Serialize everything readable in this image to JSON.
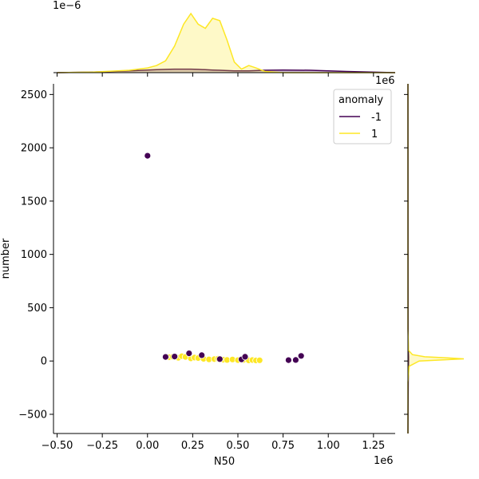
{
  "chart_data": {
    "type": "scatter",
    "xlabel": "N50",
    "ylabel": "number",
    "x_ticks": [
      "−0.50",
      "−0.25",
      "0.00",
      "0.25",
      "0.50",
      "0.75",
      "1.00",
      "1.25"
    ],
    "y_ticks": [
      "−500",
      "0",
      "500",
      "1000",
      "1500",
      "2000",
      "2500"
    ],
    "x_ticks_values": [
      -0.5,
      -0.25,
      0,
      0.25,
      0.5,
      0.75,
      1.0,
      1.25
    ],
    "y_ticks_values": [
      -500,
      0,
      500,
      1000,
      1500,
      2000,
      2500
    ],
    "x_offset_label": "1e6",
    "right_offset_label": "1e6",
    "top_offset_label": "1e−6",
    "xlim": [
      -0.52,
      1.37
    ],
    "ylim": [
      -680,
      2600
    ],
    "grid": false,
    "legend": {
      "title": "anomaly",
      "placement": "top-right",
      "entries": [
        {
          "label": "-1",
          "color": "#440154"
        },
        {
          "label": "1",
          "color": "#fde725"
        }
      ]
    },
    "colors": {
      "anomaly_neg": "#440154",
      "anomaly_pos": "#fde725"
    },
    "series": [
      {
        "anomaly": "-1",
        "color": "#440154",
        "points": [
          [
            0.0,
            1925
          ],
          [
            0.1,
            38
          ],
          [
            0.15,
            42
          ],
          [
            0.23,
            72
          ],
          [
            0.3,
            55
          ],
          [
            0.4,
            18
          ],
          [
            0.52,
            15
          ],
          [
            0.54,
            40
          ],
          [
            0.78,
            8
          ],
          [
            0.82,
            10
          ],
          [
            0.85,
            48
          ]
        ]
      },
      {
        "anomaly": "1",
        "color": "#fde725",
        "points": [
          [
            0.12,
            35
          ],
          [
            0.14,
            40
          ],
          [
            0.17,
            30
          ],
          [
            0.19,
            45
          ],
          [
            0.21,
            38
          ],
          [
            0.24,
            25
          ],
          [
            0.26,
            32
          ],
          [
            0.28,
            28
          ],
          [
            0.31,
            20
          ],
          [
            0.34,
            15
          ],
          [
            0.37,
            18
          ],
          [
            0.39,
            22
          ],
          [
            0.42,
            12
          ],
          [
            0.44,
            10
          ],
          [
            0.47,
            14
          ],
          [
            0.5,
            8
          ],
          [
            0.53,
            10
          ],
          [
            0.56,
            6
          ],
          [
            0.58,
            9
          ],
          [
            0.6,
            5
          ],
          [
            0.62,
            7
          ]
        ]
      }
    ],
    "top_density": {
      "unit_label": "1e−6",
      "x": [
        -0.5,
        -0.3,
        -0.1,
        0.0,
        0.05,
        0.1,
        0.15,
        0.2,
        0.24,
        0.28,
        0.32,
        0.36,
        0.4,
        0.44,
        0.48,
        0.52,
        0.56,
        0.6,
        0.65,
        0.75,
        0.9,
        1.1,
        1.37
      ],
      "pos": [
        0.0,
        0.01,
        0.04,
        0.08,
        0.12,
        0.2,
        0.45,
        0.82,
        1.0,
        0.82,
        0.75,
        0.92,
        0.88,
        0.55,
        0.18,
        0.06,
        0.12,
        0.08,
        0.02,
        0.0,
        0.0,
        0.0,
        0.0
      ],
      "neg": [
        0.0,
        0.01,
        0.03,
        0.045,
        0.05,
        0.055,
        0.06,
        0.06,
        0.06,
        0.055,
        0.05,
        0.045,
        0.04,
        0.035,
        0.03,
        0.03,
        0.03,
        0.035,
        0.04,
        0.045,
        0.04,
        0.02,
        0.0
      ]
    },
    "right_density": {
      "y": [
        -680,
        -200,
        -50,
        0,
        10,
        20,
        30,
        40,
        60,
        100,
        300,
        2600
      ],
      "pos": [
        0.0,
        0.0,
        0.02,
        0.2,
        0.6,
        1.0,
        0.7,
        0.3,
        0.08,
        0.01,
        0.0,
        0.0
      ],
      "neg": [
        0.0,
        0.005,
        0.01,
        0.012,
        0.012,
        0.012,
        0.012,
        0.012,
        0.01,
        0.006,
        0.003,
        0.0
      ]
    }
  }
}
